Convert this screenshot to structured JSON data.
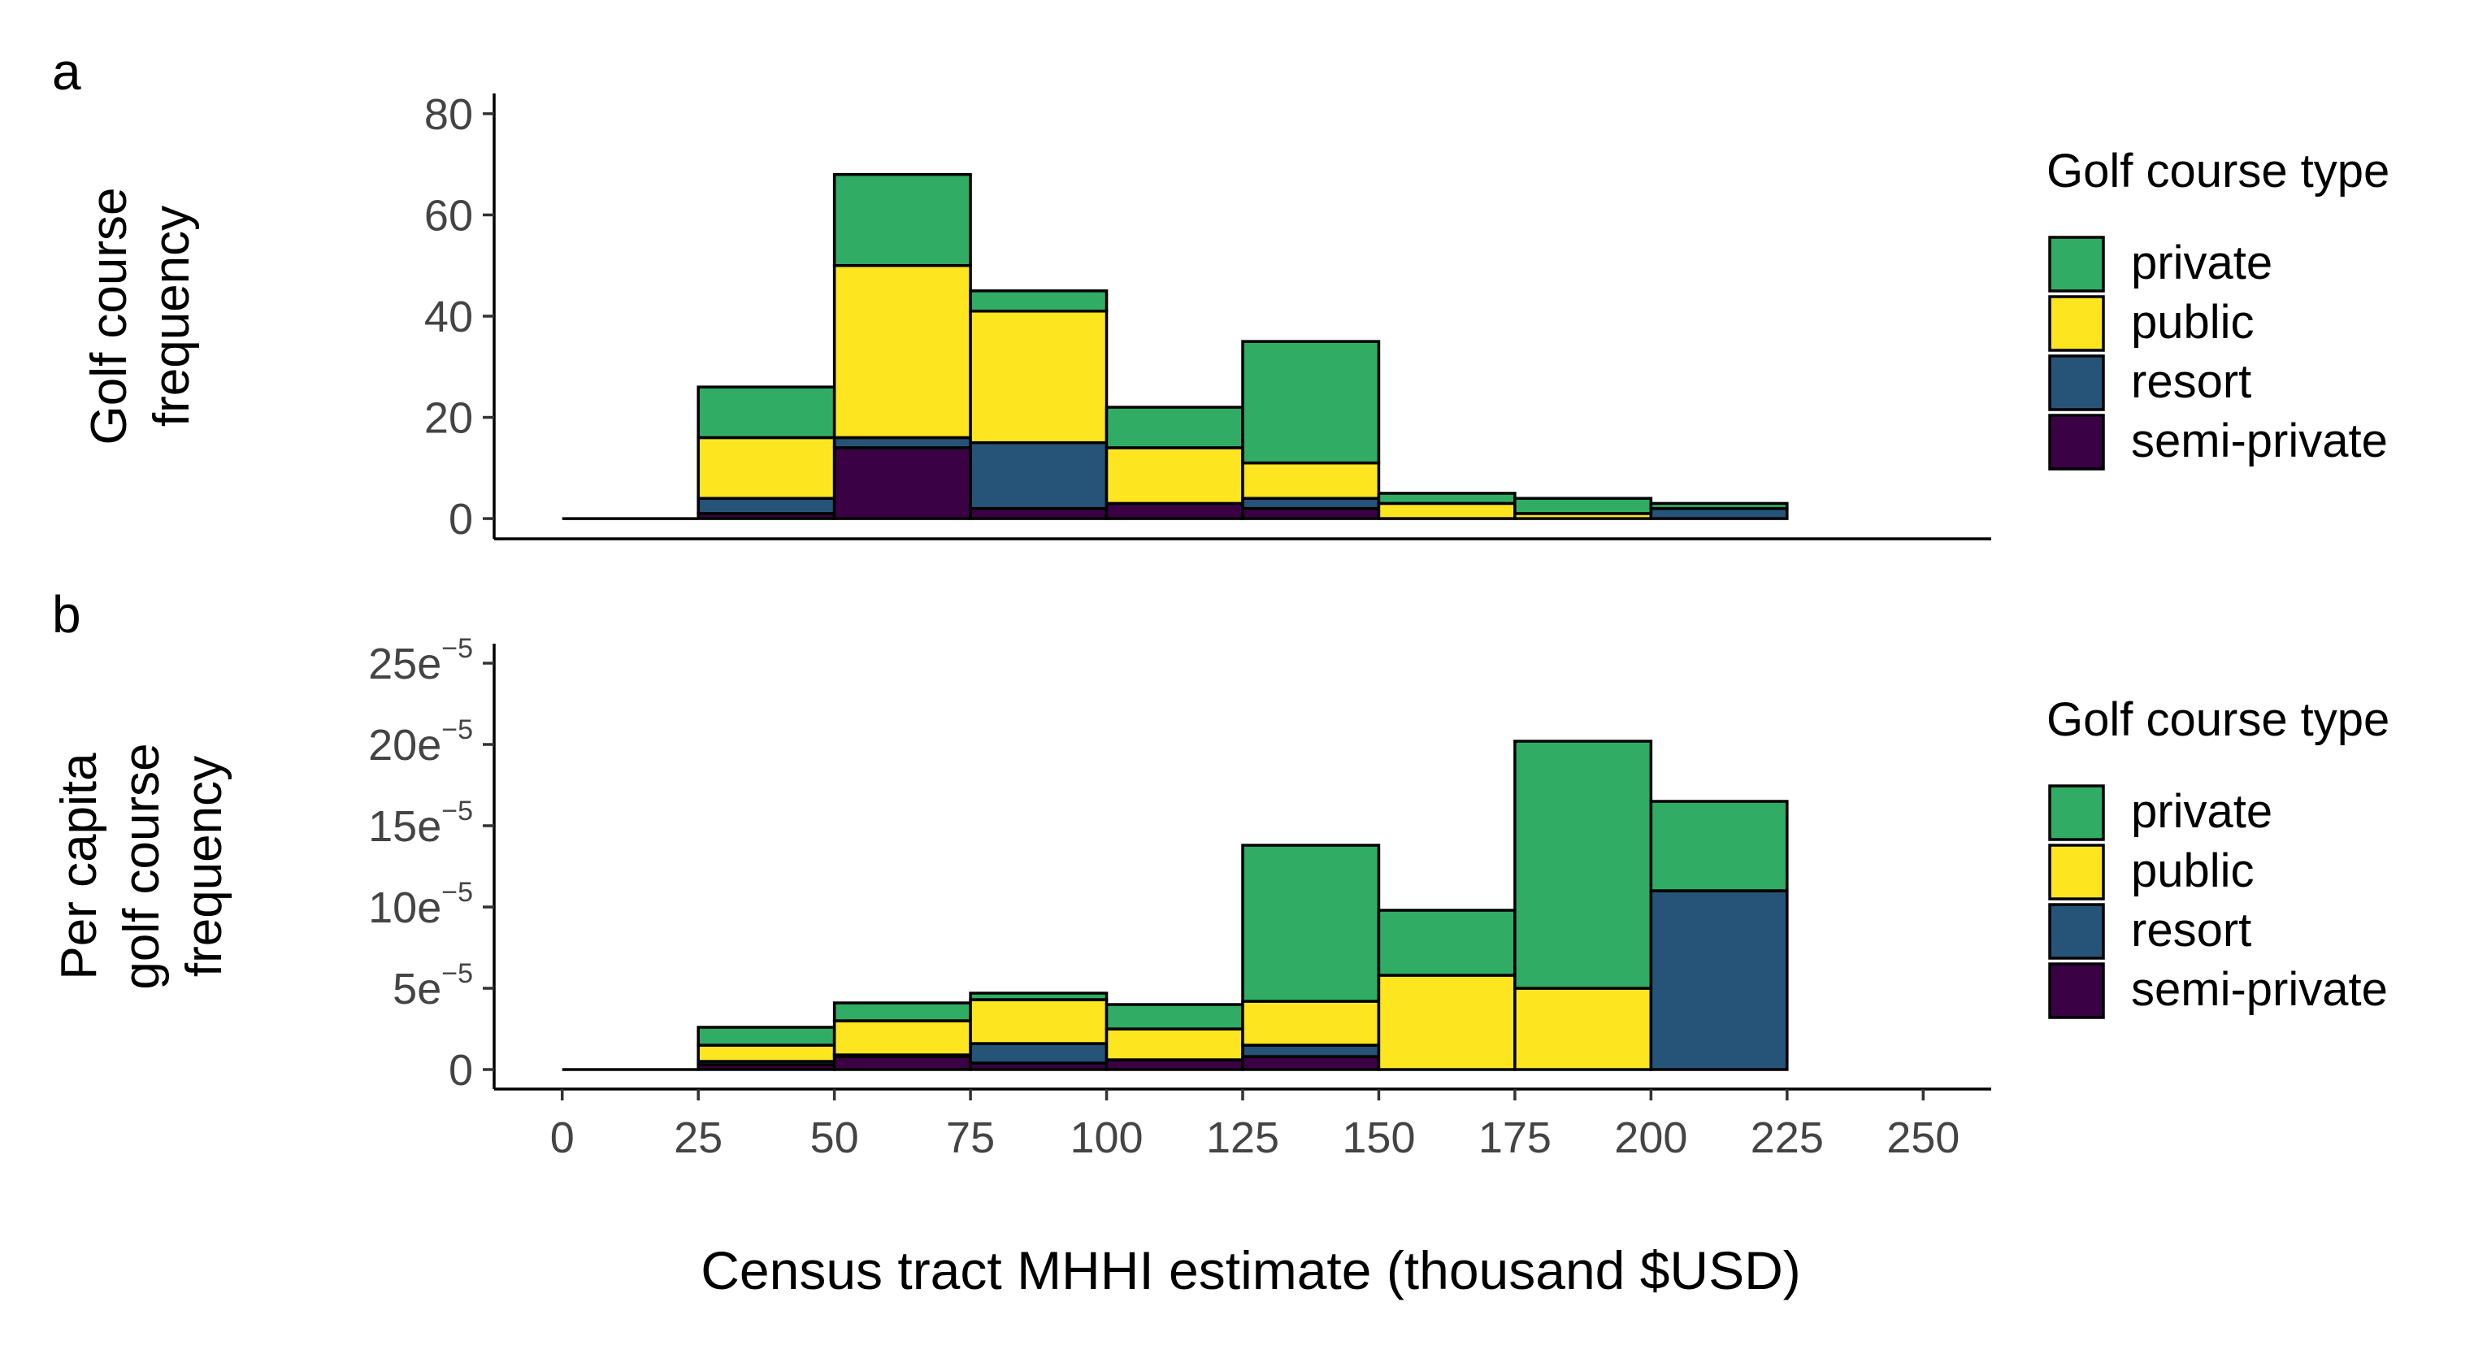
{
  "colors": {
    "private": "#31ac65",
    "public": "#fde51f",
    "resort": "#255478",
    "semi-private": "#3a0244"
  },
  "chart_data": [
    {
      "type": "bar",
      "tag": "a",
      "ylabel_lines": [
        "Golf course",
        "frequency"
      ],
      "xlabel": "",
      "x_edges": [
        0,
        25,
        50,
        75,
        100,
        125,
        150,
        175,
        200,
        225
      ],
      "xlim": [
        -12.5,
        262.5
      ],
      "ylim": [
        -4,
        84
      ],
      "y_ticks": [
        0,
        20,
        40,
        60,
        80
      ],
      "y_tick_labels": [
        {
          "base": "0",
          "sup": ""
        },
        {
          "base": "20",
          "sup": ""
        },
        {
          "base": "40",
          "sup": ""
        },
        {
          "base": "60",
          "sup": ""
        },
        {
          "base": "80",
          "sup": ""
        }
      ],
      "stack_order": [
        "semi-private",
        "resort",
        "public",
        "private"
      ],
      "series": [
        {
          "name": "private",
          "values": [
            0,
            10,
            18,
            4,
            8,
            24,
            2,
            3,
            1
          ]
        },
        {
          "name": "public",
          "values": [
            0,
            12,
            34,
            26,
            11,
            7,
            3,
            1,
            0
          ]
        },
        {
          "name": "resort",
          "values": [
            0,
            3,
            2,
            13,
            0,
            2,
            0,
            0,
            2
          ]
        },
        {
          "name": "semi-private",
          "values": [
            0,
            1,
            14,
            2,
            3,
            2,
            0,
            0,
            0
          ]
        }
      ],
      "legend": {
        "title": "Golf course type",
        "entries": [
          "private",
          "public",
          "resort",
          "semi-private"
        ],
        "position": "right"
      }
    },
    {
      "type": "bar",
      "tag": "b",
      "ylabel_lines": [
        "Per capita",
        "golf course",
        "frequency"
      ],
      "xlabel": "Census tract MHHI estimate (thousand $USD)",
      "x_edges": [
        0,
        25,
        50,
        75,
        100,
        125,
        150,
        175,
        200,
        225
      ],
      "x_ticks": [
        0,
        25,
        50,
        75,
        100,
        125,
        150,
        175,
        200,
        225,
        250
      ],
      "x_tick_labels": [
        "0",
        "25",
        "50",
        "75",
        "100",
        "125",
        "150",
        "175",
        "200",
        "225",
        "250"
      ],
      "xlim": [
        -12.5,
        262.5
      ],
      "ylim": [
        -1.2,
        26.2
      ],
      "y_scale_note": "values in units of 1e-5",
      "y_ticks": [
        0,
        5,
        10,
        15,
        20,
        25
      ],
      "y_tick_labels": [
        {
          "base": "0",
          "sup": ""
        },
        {
          "base": "5e",
          "sup": "−5"
        },
        {
          "base": "10e",
          "sup": "−5"
        },
        {
          "base": "15e",
          "sup": "−5"
        },
        {
          "base": "20e",
          "sup": "−5"
        },
        {
          "base": "25e",
          "sup": "−5"
        }
      ],
      "stack_order": [
        "semi-private",
        "resort",
        "public",
        "private"
      ],
      "series": [
        {
          "name": "private",
          "values": [
            0,
            1.1,
            1.1,
            0.4,
            1.5,
            9.6,
            4.0,
            15.2,
            5.5
          ]
        },
        {
          "name": "public",
          "values": [
            0,
            1.0,
            2.1,
            2.7,
            1.9,
            2.7,
            5.8,
            5.0,
            0
          ]
        },
        {
          "name": "resort",
          "values": [
            0,
            0.2,
            0.1,
            1.2,
            0,
            0.7,
            0,
            0,
            11.0
          ]
        },
        {
          "name": "semi-private",
          "values": [
            0,
            0.3,
            0.8,
            0.4,
            0.6,
            0.8,
            0,
            0,
            0
          ]
        }
      ],
      "legend": {
        "title": "Golf course type",
        "entries": [
          "private",
          "public",
          "resort",
          "semi-private"
        ],
        "position": "right"
      }
    }
  ]
}
